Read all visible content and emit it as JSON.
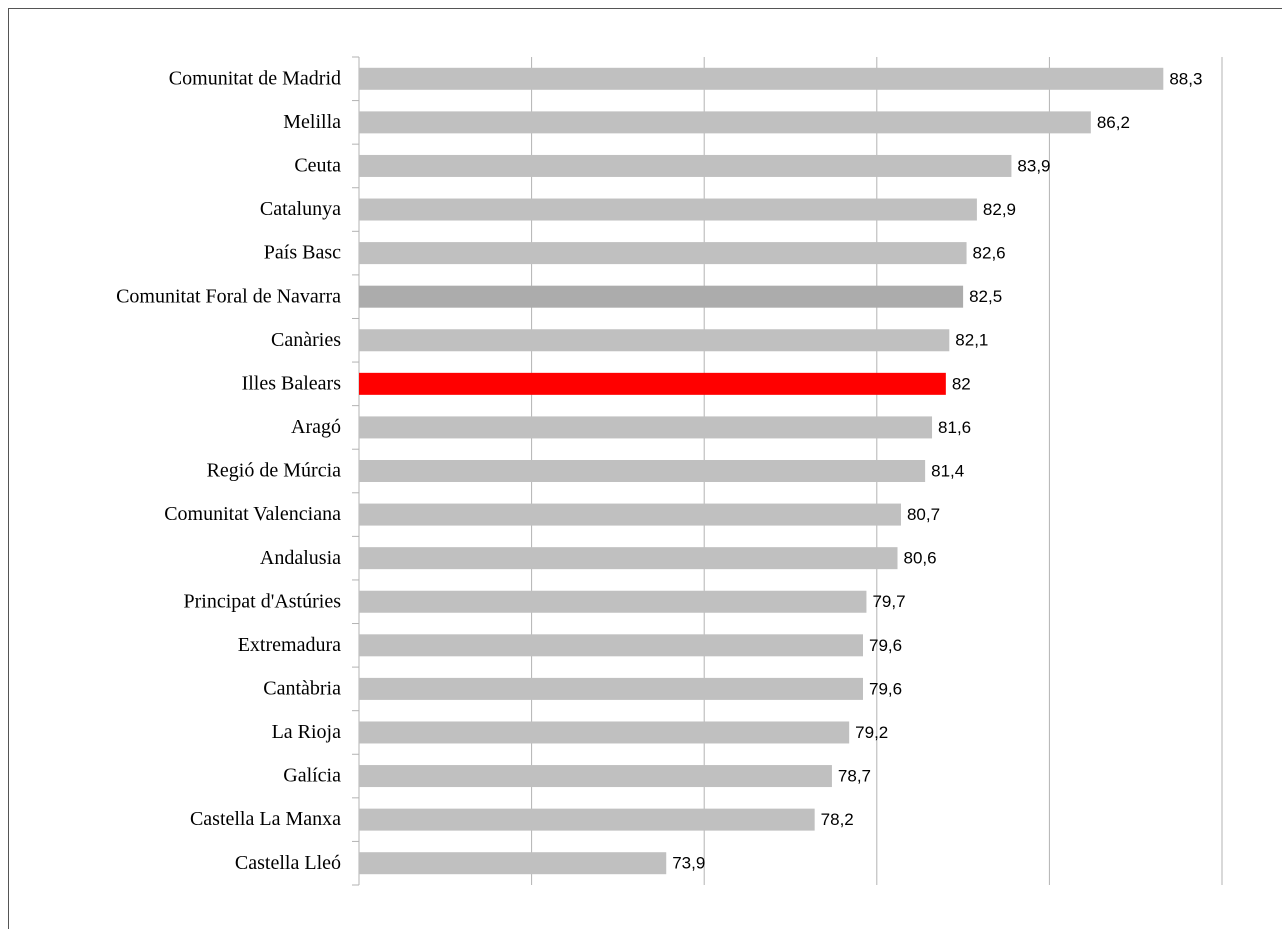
{
  "chart_data": {
    "type": "hbar",
    "categories": [
      "Comunitat de Madrid",
      "Melilla",
      "Ceuta",
      "Catalunya",
      "País Basc",
      "Comunitat Foral de Navarra",
      "Canàries",
      "Illes Balears",
      "Aragó",
      "Regió de Múrcia",
      "Comunitat Valenciana",
      "Andalusia",
      "Principat d'Astúries",
      "Extremadura",
      "Cantàbria",
      "La Rioja",
      "Galícia",
      "Castella La Manxa",
      "Castella Lleó"
    ],
    "values": [
      88.3,
      86.2,
      83.9,
      82.9,
      82.6,
      82.5,
      82.1,
      82,
      81.6,
      81.4,
      80.7,
      80.6,
      79.7,
      79.6,
      79.6,
      79.2,
      78.7,
      78.2,
      73.9
    ],
    "value_labels": [
      "88,3",
      "86,2",
      "83,9",
      "82,9",
      "82,6",
      "82,5",
      "82,1",
      "82",
      "81,6",
      "81,4",
      "80,7",
      "80,6",
      "79,7",
      "79,6",
      "79,6",
      "79,2",
      "78,7",
      "78,2",
      "73,9"
    ],
    "colors": [
      "#c0c0c0",
      "#c0c0c0",
      "#c0c0c0",
      "#c0c0c0",
      "#c0c0c0",
      "#acacac",
      "#c0c0c0",
      "#ff0000",
      "#c0c0c0",
      "#c0c0c0",
      "#c0c0c0",
      "#c0c0c0",
      "#c0c0c0",
      "#c0c0c0",
      "#c0c0c0",
      "#c0c0c0",
      "#c0c0c0",
      "#c0c0c0",
      "#c0c0c0"
    ],
    "xlim": [
      65,
      90
    ],
    "xticks": [
      65,
      70,
      75,
      80,
      85,
      90
    ],
    "grid": true
  }
}
